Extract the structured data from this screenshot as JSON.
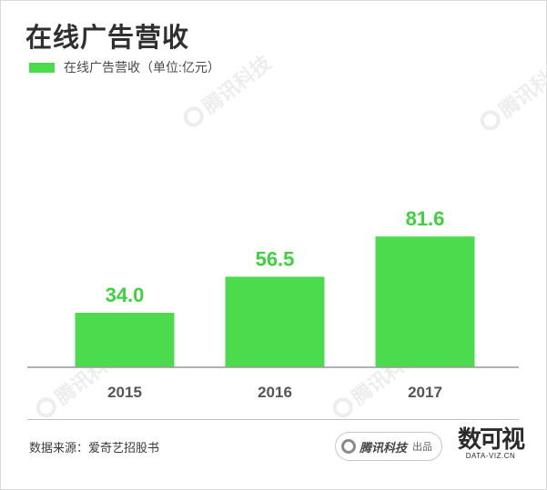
{
  "title": "在线广告营收",
  "legend": {
    "label": "在线广告营收（单位:亿元）",
    "color": "#4cdb4c"
  },
  "watermark_text": "腾讯科技",
  "chart_data": {
    "type": "bar",
    "title": "在线广告营收",
    "ylabel": "",
    "xlabel": "",
    "categories": [
      "2015",
      "2016",
      "2017"
    ],
    "series": [
      {
        "name": "在线广告营收（单位:亿元）",
        "values": [
          34.0,
          56.5,
          81.6
        ],
        "labels": [
          "34.0",
          "56.5",
          "81.6"
        ]
      }
    ],
    "bar_color": "#4cdb4c",
    "label_color": "#3ed13e",
    "axis_color": "#999999",
    "tick_label_color": "#555555",
    "grid": false,
    "legend_position": "top-left"
  },
  "footer": {
    "source": "数据来源：爱奇艺招股书",
    "badge_brand": "腾讯科技",
    "badge_suffix": "出品",
    "logo_cn": "数可视",
    "logo_en": "DATA-VIZ.CN"
  }
}
